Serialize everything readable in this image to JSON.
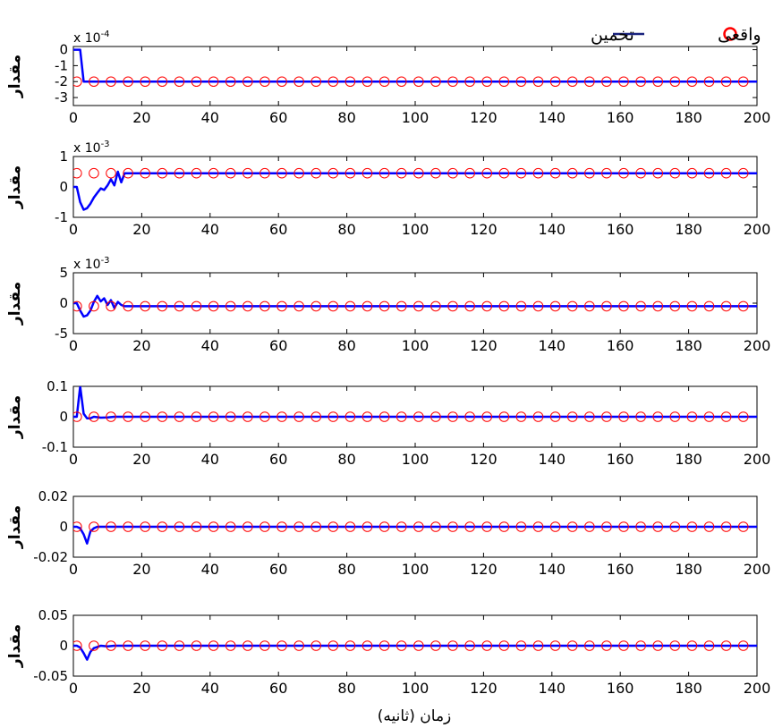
{
  "figure": {
    "xlabel": "زمان (ثانیه)",
    "legend": {
      "placement": "top-right",
      "actual_label": "واقعی",
      "estimate_label": "تخمین",
      "actual_color": "#ff0000",
      "estimate_color": "#0000ff"
    }
  },
  "chart_data": [
    {
      "type": "line",
      "ylabel": "مقدار",
      "exponent_label": "x 10",
      "exponent": "-4",
      "xlim": [
        0,
        200
      ],
      "ylim": [
        -3.5,
        0.2
      ],
      "yticks": [
        0,
        -1,
        -2,
        -3
      ],
      "xticks": [
        0,
        20,
        40,
        60,
        80,
        100,
        120,
        140,
        160,
        180,
        200
      ],
      "grid": false,
      "series": [
        {
          "name": "تخمین",
          "kind": "line",
          "color": "#0000ff",
          "x": [
            0,
            2,
            3,
            200
          ],
          "y": [
            0,
            0,
            -2,
            -2
          ]
        },
        {
          "name": "واقعی",
          "kind": "markers",
          "color": "#ff0000",
          "x": [
            1,
            6,
            11,
            16,
            21,
            26,
            31,
            36,
            41,
            46,
            51,
            56,
            61,
            66,
            71,
            76,
            81,
            86,
            91,
            96,
            101,
            106,
            111,
            116,
            121,
            126,
            131,
            136,
            141,
            146,
            151,
            156,
            161,
            166,
            171,
            176,
            181,
            186,
            191,
            196
          ],
          "y": [
            -2,
            -2,
            -2,
            -2,
            -2,
            -2,
            -2,
            -2,
            -2,
            -2,
            -2,
            -2,
            -2,
            -2,
            -2,
            -2,
            -2,
            -2,
            -2,
            -2,
            -2,
            -2,
            -2,
            -2,
            -2,
            -2,
            -2,
            -2,
            -2,
            -2,
            -2,
            -2,
            -2,
            -2,
            -2,
            -2,
            -2,
            -2,
            -2,
            -2
          ]
        }
      ]
    },
    {
      "type": "line",
      "ylabel": "مقدار",
      "exponent_label": "x 10",
      "exponent": "-3",
      "xlim": [
        0,
        200
      ],
      "ylim": [
        -1,
        1
      ],
      "yticks": [
        1,
        0,
        -1
      ],
      "xticks": [
        0,
        20,
        40,
        60,
        80,
        100,
        120,
        140,
        160,
        180,
        200
      ],
      "grid": false,
      "series": [
        {
          "name": "تخمین",
          "kind": "line",
          "color": "#0000ff",
          "x": [
            0,
            1,
            2,
            3,
            4,
            5,
            6,
            7,
            8,
            9,
            10,
            11,
            12,
            13,
            14,
            15,
            200
          ],
          "y": [
            0,
            0,
            -0.5,
            -0.75,
            -0.7,
            -0.55,
            -0.35,
            -0.2,
            -0.05,
            -0.1,
            0.05,
            0.25,
            0.05,
            0.5,
            0.15,
            0.45,
            0.45
          ]
        },
        {
          "name": "واقعی",
          "kind": "markers",
          "color": "#ff0000",
          "x": [
            1,
            6,
            11,
            16,
            21,
            26,
            31,
            36,
            41,
            46,
            51,
            56,
            61,
            66,
            71,
            76,
            81,
            86,
            91,
            96,
            101,
            106,
            111,
            116,
            121,
            126,
            131,
            136,
            141,
            146,
            151,
            156,
            161,
            166,
            171,
            176,
            181,
            186,
            191,
            196
          ],
          "y": [
            0.45,
            0.45,
            0.45,
            0.45,
            0.45,
            0.45,
            0.45,
            0.45,
            0.45,
            0.45,
            0.45,
            0.45,
            0.45,
            0.45,
            0.45,
            0.45,
            0.45,
            0.45,
            0.45,
            0.45,
            0.45,
            0.45,
            0.45,
            0.45,
            0.45,
            0.45,
            0.45,
            0.45,
            0.45,
            0.45,
            0.45,
            0.45,
            0.45,
            0.45,
            0.45,
            0.45,
            0.45,
            0.45,
            0.45,
            0.45
          ]
        }
      ]
    },
    {
      "type": "line",
      "ylabel": "مقدار",
      "exponent_label": "x 10",
      "exponent": "-3",
      "xlim": [
        0,
        200
      ],
      "ylim": [
        -5,
        5
      ],
      "yticks": [
        5,
        0,
        -5
      ],
      "xticks": [
        0,
        20,
        40,
        60,
        80,
        100,
        120,
        140,
        160,
        180,
        200
      ],
      "grid": false,
      "series": [
        {
          "name": "تخمین",
          "kind": "line",
          "color": "#0000ff",
          "x": [
            0,
            1,
            2,
            3,
            4,
            5,
            6,
            7,
            8,
            9,
            10,
            11,
            12,
            13,
            14,
            15,
            200
          ],
          "y": [
            0,
            0,
            -1.2,
            -2.2,
            -2.0,
            -1.2,
            0.2,
            1.2,
            0.3,
            0.8,
            -0.3,
            0.5,
            -0.8,
            0.2,
            -0.3,
            -0.5,
            -0.5
          ]
        },
        {
          "name": "واقعی",
          "kind": "markers",
          "color": "#ff0000",
          "x": [
            1,
            6,
            11,
            16,
            21,
            26,
            31,
            36,
            41,
            46,
            51,
            56,
            61,
            66,
            71,
            76,
            81,
            86,
            91,
            96,
            101,
            106,
            111,
            116,
            121,
            126,
            131,
            136,
            141,
            146,
            151,
            156,
            161,
            166,
            171,
            176,
            181,
            186,
            191,
            196
          ],
          "y": [
            -0.5,
            -0.5,
            -0.5,
            -0.5,
            -0.5,
            -0.5,
            -0.5,
            -0.5,
            -0.5,
            -0.5,
            -0.5,
            -0.5,
            -0.5,
            -0.5,
            -0.5,
            -0.5,
            -0.5,
            -0.5,
            -0.5,
            -0.5,
            -0.5,
            -0.5,
            -0.5,
            -0.5,
            -0.5,
            -0.5,
            -0.5,
            -0.5,
            -0.5,
            -0.5,
            -0.5,
            -0.5,
            -0.5,
            -0.5,
            -0.5,
            -0.5,
            -0.5,
            -0.5,
            -0.5,
            -0.5
          ]
        }
      ]
    },
    {
      "type": "line",
      "ylabel": "مقدار",
      "exponent_label": "",
      "exponent": "",
      "xlim": [
        0,
        200
      ],
      "ylim": [
        -0.1,
        0.1
      ],
      "yticks": [
        0.1,
        0,
        -0.1
      ],
      "xticks": [
        0,
        20,
        40,
        60,
        80,
        100,
        120,
        140,
        160,
        180,
        200
      ],
      "grid": false,
      "series": [
        {
          "name": "تخمین",
          "kind": "line",
          "color": "#0000ff",
          "x": [
            0,
            1,
            2,
            3,
            4,
            5,
            6,
            8,
            10,
            12,
            200
          ],
          "y": [
            0,
            0,
            0.1,
            0.01,
            -0.005,
            -0.005,
            0,
            -0.003,
            -0.002,
            0,
            0
          ]
        },
        {
          "name": "واقعی",
          "kind": "markers",
          "color": "#ff0000",
          "x": [
            1,
            6,
            11,
            16,
            21,
            26,
            31,
            36,
            41,
            46,
            51,
            56,
            61,
            66,
            71,
            76,
            81,
            86,
            91,
            96,
            101,
            106,
            111,
            116,
            121,
            126,
            131,
            136,
            141,
            146,
            151,
            156,
            161,
            166,
            171,
            176,
            181,
            186,
            191,
            196
          ],
          "y": [
            0,
            0,
            0,
            0,
            0,
            0,
            0,
            0,
            0,
            0,
            0,
            0,
            0,
            0,
            0,
            0,
            0,
            0,
            0,
            0,
            0,
            0,
            0,
            0,
            0,
            0,
            0,
            0,
            0,
            0,
            0,
            0,
            0,
            0,
            0,
            0,
            0,
            0,
            0,
            0
          ]
        }
      ]
    },
    {
      "type": "line",
      "ylabel": "مقدار",
      "exponent_label": "",
      "exponent": "",
      "xlim": [
        0,
        200
      ],
      "ylim": [
        -0.02,
        0.02
      ],
      "yticks": [
        0.02,
        0,
        -0.02
      ],
      "xticks": [
        0,
        20,
        40,
        60,
        80,
        100,
        120,
        140,
        160,
        180,
        200
      ],
      "grid": false,
      "series": [
        {
          "name": "تخمین",
          "kind": "line",
          "color": "#0000ff",
          "x": [
            0,
            1,
            2,
            3,
            4,
            5,
            6,
            7,
            8,
            10,
            200
          ],
          "y": [
            0,
            0,
            -0.001,
            -0.005,
            -0.011,
            -0.003,
            -0.001,
            0,
            0,
            0,
            0
          ]
        },
        {
          "name": "واقعی",
          "kind": "markers",
          "color": "#ff0000",
          "x": [
            1,
            6,
            11,
            16,
            21,
            26,
            31,
            36,
            41,
            46,
            51,
            56,
            61,
            66,
            71,
            76,
            81,
            86,
            91,
            96,
            101,
            106,
            111,
            116,
            121,
            126,
            131,
            136,
            141,
            146,
            151,
            156,
            161,
            166,
            171,
            176,
            181,
            186,
            191,
            196
          ],
          "y": [
            0,
            0,
            0,
            0,
            0,
            0,
            0,
            0,
            0,
            0,
            0,
            0,
            0,
            0,
            0,
            0,
            0,
            0,
            0,
            0,
            0,
            0,
            0,
            0,
            0,
            0,
            0,
            0,
            0,
            0,
            0,
            0,
            0,
            0,
            0,
            0,
            0,
            0,
            0,
            0
          ]
        }
      ]
    },
    {
      "type": "line",
      "ylabel": "مقدار",
      "exponent_label": "",
      "exponent": "",
      "xlim": [
        0,
        200
      ],
      "ylim": [
        -0.05,
        0.05
      ],
      "yticks": [
        0.05,
        0,
        -0.05
      ],
      "xticks": [
        0,
        20,
        40,
        60,
        80,
        100,
        120,
        140,
        160,
        180,
        200
      ],
      "grid": false,
      "series": [
        {
          "name": "تخمین",
          "kind": "line",
          "color": "#0000ff",
          "x": [
            0,
            1,
            2,
            3,
            4,
            5,
            6,
            7,
            8,
            10,
            12,
            200
          ],
          "y": [
            0,
            0,
            -0.003,
            -0.012,
            -0.023,
            -0.01,
            -0.004,
            -0.002,
            0,
            -0.001,
            0,
            0
          ]
        },
        {
          "name": "واقعی",
          "kind": "markers",
          "color": "#ff0000",
          "x": [
            1,
            6,
            11,
            16,
            21,
            26,
            31,
            36,
            41,
            46,
            51,
            56,
            61,
            66,
            71,
            76,
            81,
            86,
            91,
            96,
            101,
            106,
            111,
            116,
            121,
            126,
            131,
            136,
            141,
            146,
            151,
            156,
            161,
            166,
            171,
            176,
            181,
            186,
            191,
            196
          ],
          "y": [
            0,
            0,
            0,
            0,
            0,
            0,
            0,
            0,
            0,
            0,
            0,
            0,
            0,
            0,
            0,
            0,
            0,
            0,
            0,
            0,
            0,
            0,
            0,
            0,
            0,
            0,
            0,
            0,
            0,
            0,
            0,
            0,
            0,
            0,
            0,
            0,
            0,
            0,
            0,
            0
          ]
        }
      ]
    }
  ]
}
